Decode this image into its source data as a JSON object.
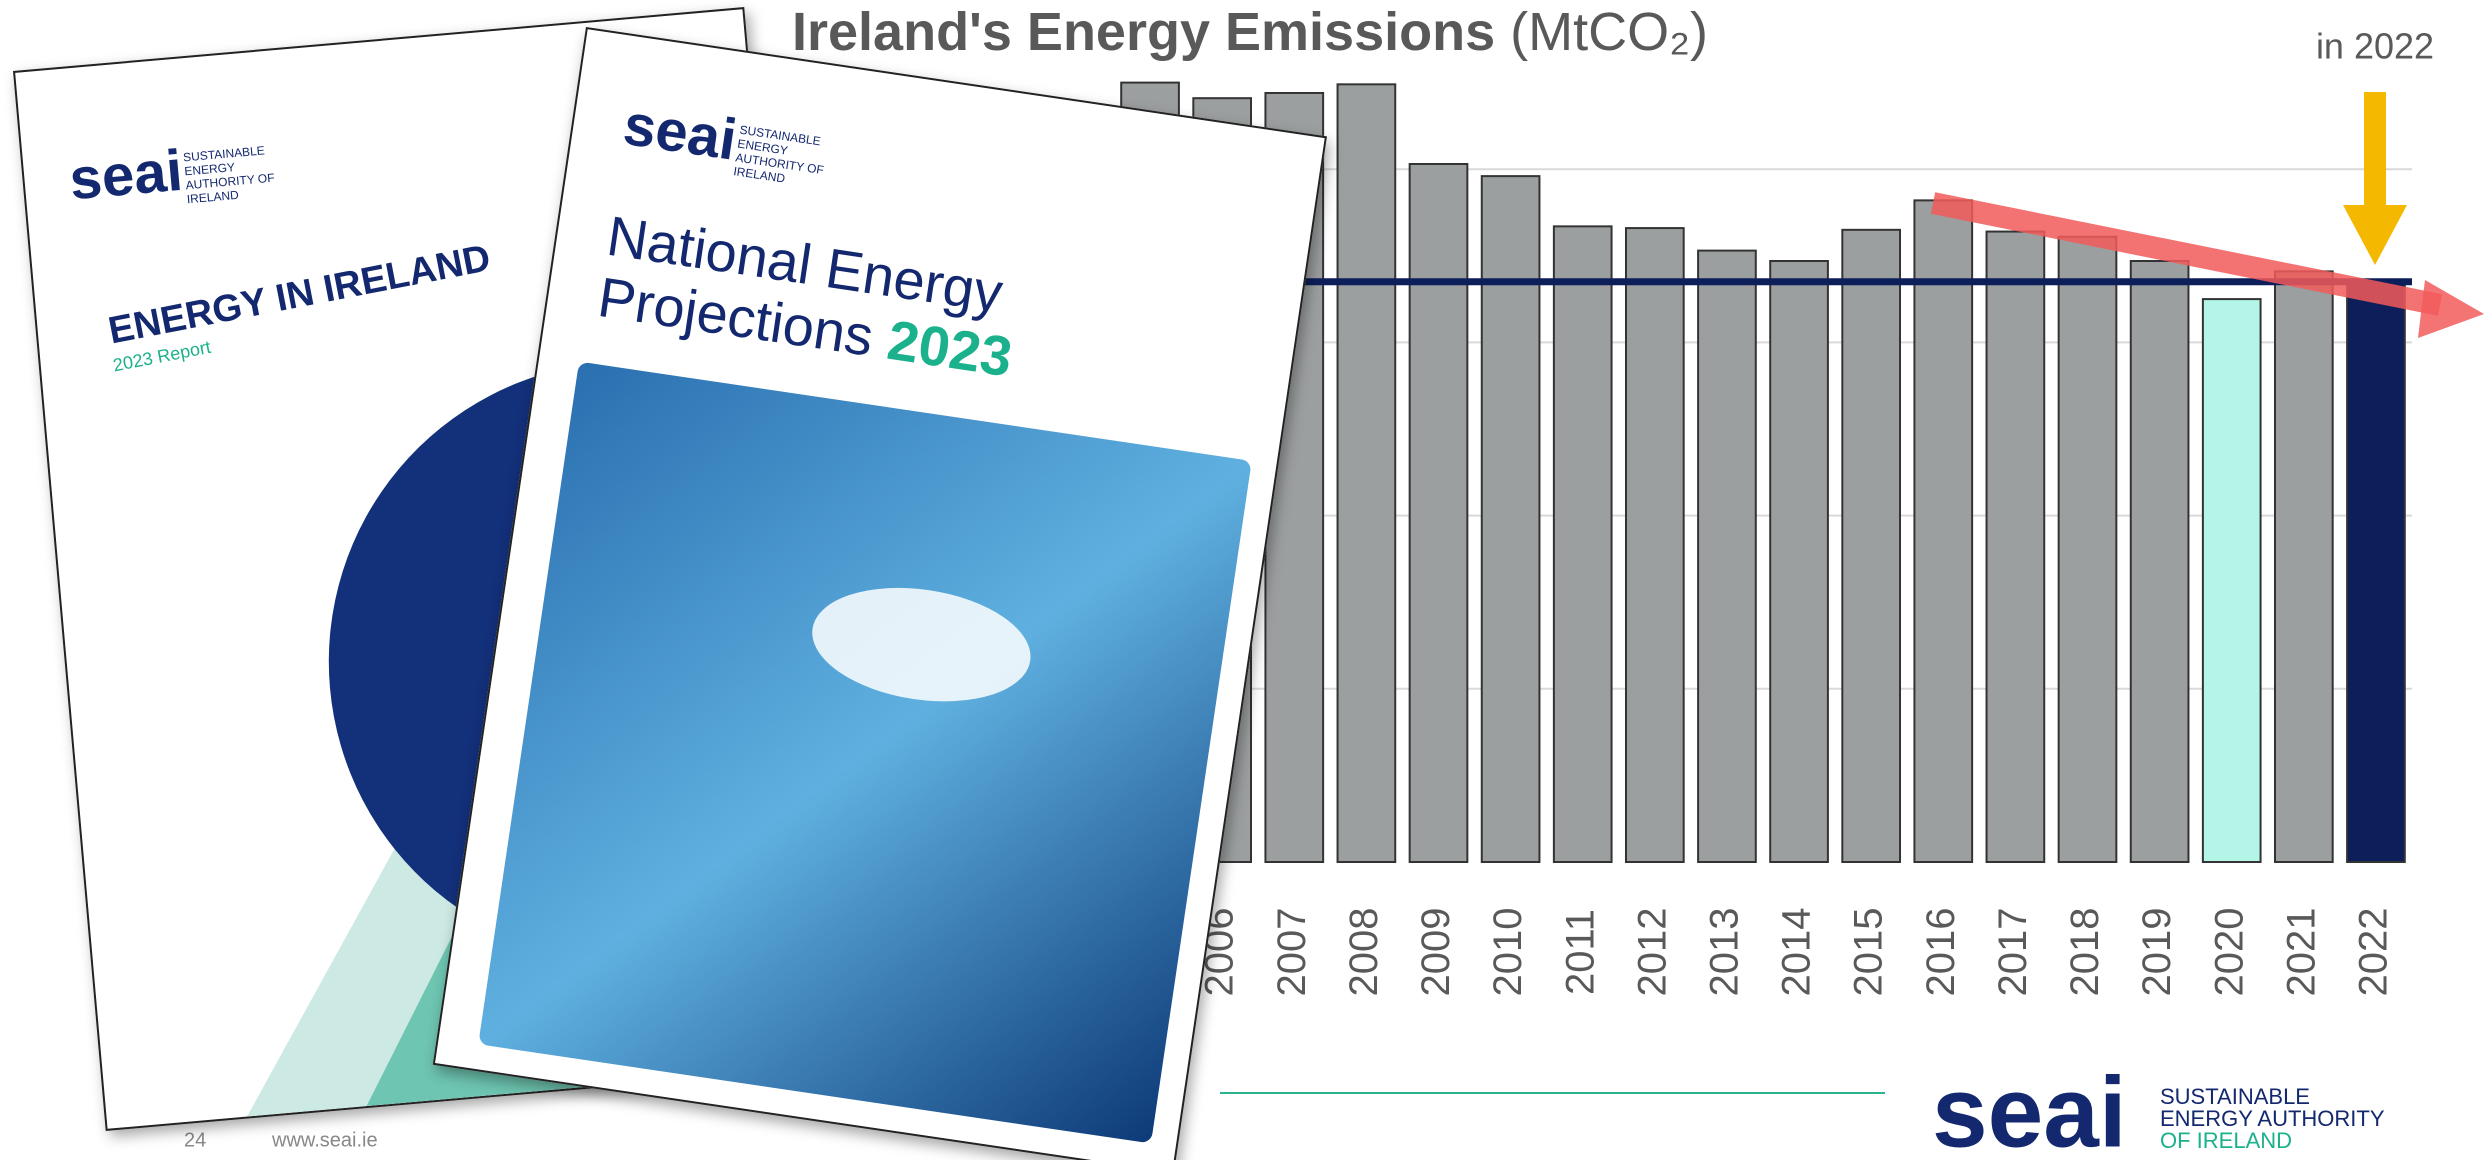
{
  "chart_data": {
    "type": "bar",
    "title": "Ireland's Energy Emissions",
    "unit": "(MtCO₂)",
    "categories": [
      null,
      "2006",
      "2007",
      "2008",
      "2009",
      "2010",
      "2011",
      "2012",
      "2013",
      "2014",
      "2015",
      "2016",
      "2017",
      "2018",
      "2019",
      "2020",
      "2021",
      "2022"
    ],
    "values": [
      45.0,
      44.1,
      44.4,
      44.9,
      40.3,
      39.6,
      36.7,
      36.6,
      35.3,
      34.7,
      36.5,
      38.2,
      36.4,
      36.1,
      34.7,
      32.5,
      34.1,
      33.5
    ],
    "colors": [
      "#9c9fa0",
      "#9c9fa0",
      "#9c9fa0",
      "#9c9fa0",
      "#9c9fa0",
      "#9c9fa0",
      "#9c9fa0",
      "#9c9fa0",
      "#9c9fa0",
      "#9c9fa0",
      "#9c9fa0",
      "#9c9fa0",
      "#9c9fa0",
      "#9c9fa0",
      "#9c9fa0",
      "#b3f5e6",
      "#9c9fa0",
      "#0d1f5a"
    ],
    "ylim": [
      0,
      50
    ],
    "gridlines": [
      10,
      20,
      30,
      40
    ],
    "reference_line": {
      "value": 33.5,
      "color": "#0d1f5a"
    },
    "annotation": "in 2022"
  },
  "covers": [
    {
      "logo": "seai",
      "logo_text": "SUSTAINABLE ENERGY AUTHORITY OF IRELAND",
      "title": "ENERGY IN IRELAND",
      "subtitle": "2023 Report"
    },
    {
      "logo": "seai",
      "logo_text": "SUSTAINABLE ENERGY AUTHORITY OF IRELAND",
      "title": "National Energy Projections",
      "year": "2023"
    }
  ],
  "footer": {
    "page": "24",
    "url": "www.seai.ie",
    "logo": "seai",
    "logo_text": [
      "SUSTAINABLE",
      "ENERGY AUTHORITY",
      "OF IRELAND"
    ]
  }
}
